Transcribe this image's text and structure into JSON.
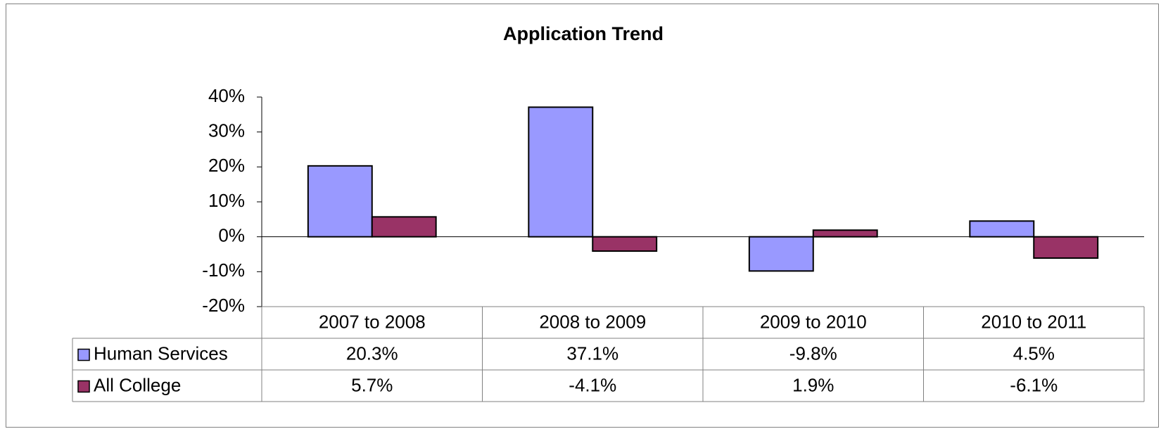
{
  "chart_data": {
    "type": "bar",
    "title": "Application Trend",
    "categories": [
      "2007 to 2008",
      "2008 to 2009",
      "2009 to 2010",
      "2010 to 2011"
    ],
    "series": [
      {
        "name": "Human Services",
        "color": "#9999ff",
        "values": [
          20.3,
          37.1,
          -9.8,
          4.5
        ],
        "value_labels": [
          "20.3%",
          "37.1%",
          "-9.8%",
          "4.5%"
        ]
      },
      {
        "name": "All College",
        "color": "#993366",
        "values": [
          5.7,
          -4.1,
          1.9,
          -6.1
        ],
        "value_labels": [
          "5.7%",
          "-4.1%",
          "1.9%",
          "-6.1%"
        ]
      }
    ],
    "ylim": [
      -20,
      40
    ],
    "yticks": [
      {
        "value": -20,
        "label": "-20%"
      },
      {
        "value": -10,
        "label": "-10%"
      },
      {
        "value": 0,
        "label": "0%"
      },
      {
        "value": 10,
        "label": "10%"
      },
      {
        "value": 20,
        "label": "20%"
      },
      {
        "value": 30,
        "label": "30%"
      },
      {
        "value": 40,
        "label": "40%"
      }
    ],
    "grid": false
  }
}
